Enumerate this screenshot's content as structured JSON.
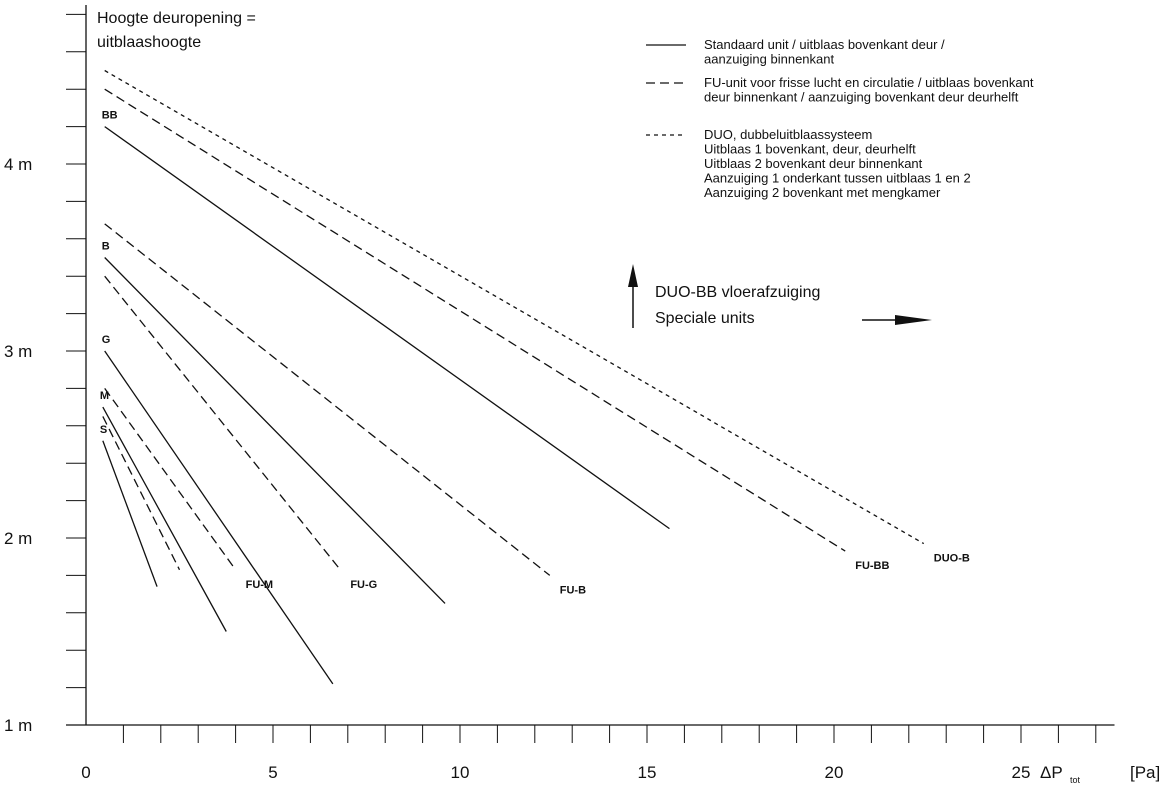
{
  "chart_data": {
    "type": "line",
    "ylabel": "Hoogte deuropening =",
    "ylabel_line2": "uitblaashoogte",
    "xlabel_symbol": "ΔP",
    "xlabel_subscript": "tot",
    "xlabel_unit": "[Pa]",
    "xlim": [
      0,
      27.5
    ],
    "ylim": [
      1,
      4.85
    ],
    "x_ticks": [
      0,
      5,
      10,
      15,
      20,
      25
    ],
    "x_tick_labels": [
      "0",
      "5",
      "10",
      "15",
      "20",
      "25"
    ],
    "y_ticks": [
      1,
      2,
      3,
      4
    ],
    "y_tick_labels": [
      "1 m",
      "2 m",
      "3 m",
      "4 m"
    ],
    "x_minor_step": 1,
    "y_minor_step": 0.2,
    "grid": false,
    "legend_position": "top-right",
    "legend": [
      {
        "style": "solid",
        "lines": [
          "Standaard unit / uitblaas bovenkant deur /",
          "aanzuiging binnenkant"
        ]
      },
      {
        "style": "dashed",
        "lines": [
          "FU-unit voor frisse lucht en circulatie / uitblaas bovenkant",
          "deur binnenkant / aanzuiging bovenkant deur deurhelft"
        ]
      },
      {
        "style": "dotted",
        "lines": [
          "DUO, dubbeluitblaassysteem",
          "Uitblaas 1 bovenkant, deur, deurhelft",
          "Uitblaas 2 bovenkant deur binnenkant",
          "Aanzuiging 1 onderkant tussen uitblaas 1 en 2",
          "Aanzuiging 2 bovenkant met mengkamer"
        ]
      }
    ],
    "annotations": [
      "DUO-BB vloerafzuiging",
      "Speciale units"
    ],
    "series": [
      {
        "name": "BB",
        "style": "solid",
        "x": [
          0.5,
          15.6
        ],
        "y": [
          4.2,
          2.05
        ],
        "label_side": "start"
      },
      {
        "name": "B",
        "style": "solid",
        "x": [
          0.5,
          9.6
        ],
        "y": [
          3.5,
          1.65
        ],
        "label_side": "start"
      },
      {
        "name": "G",
        "style": "solid",
        "x": [
          0.5,
          6.6
        ],
        "y": [
          3.0,
          1.22
        ],
        "label_side": "start"
      },
      {
        "name": "M",
        "style": "solid",
        "x": [
          0.45,
          3.75
        ],
        "y": [
          2.7,
          1.5
        ],
        "label_side": "start"
      },
      {
        "name": "S",
        "style": "solid",
        "x": [
          0.45,
          1.9
        ],
        "y": [
          2.52,
          1.74
        ],
        "label_side": "start"
      },
      {
        "name": "",
        "style": "dashed",
        "x": [
          0.45,
          2.5
        ],
        "y": [
          2.65,
          1.83
        ]
      },
      {
        "name": "FU-M",
        "style": "dashed",
        "x": [
          0.5,
          4.0
        ],
        "y": [
          2.8,
          1.83
        ],
        "label_side": "end"
      },
      {
        "name": "FU-G",
        "style": "dashed",
        "x": [
          0.5,
          6.8
        ],
        "y": [
          3.4,
          1.83
        ],
        "label_side": "end"
      },
      {
        "name": "FU-B",
        "style": "dashed",
        "x": [
          0.5,
          12.4
        ],
        "y": [
          3.68,
          1.8
        ],
        "label_side": "end"
      },
      {
        "name": "FU-BB",
        "style": "dashed",
        "x": [
          0.5,
          20.3
        ],
        "y": [
          4.4,
          1.93
        ],
        "label_side": "end"
      },
      {
        "name": "DUO-B",
        "style": "dotted",
        "x": [
          0.5,
          22.4
        ],
        "y": [
          4.5,
          1.97
        ],
        "label_side": "end"
      }
    ]
  }
}
